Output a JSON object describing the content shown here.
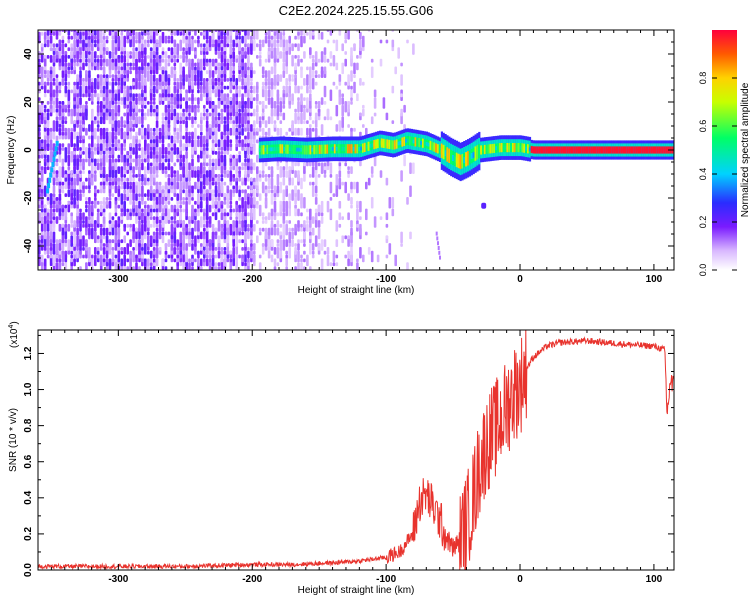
{
  "title": "C2E2.2024.225.15.55.G06",
  "chart_data": [
    {
      "type": "heatmap",
      "xlabel": "Height of straight line (km)",
      "ylabel": "Frequency (Hz)",
      "xlim": [
        -360,
        115
      ],
      "ylim": [
        -50,
        50
      ],
      "x_ticks": [
        -300,
        -200,
        -100,
        0,
        100
      ],
      "y_ticks": [
        -40,
        -20,
        0,
        20,
        40
      ],
      "colorbar": {
        "label": "Normalized spectral amplitude",
        "range": [
          0,
          1
        ],
        "ticks": [
          0.0,
          0.2,
          0.4,
          0.6,
          0.8
        ]
      },
      "signal_track": [
        {
          "x": -195,
          "y": 0.0
        },
        {
          "x": -180,
          "y": 0.5
        },
        {
          "x": -160,
          "y": 0.0
        },
        {
          "x": -140,
          "y": 0.5
        },
        {
          "x": -120,
          "y": 0.5
        },
        {
          "x": -105,
          "y": 3.0
        },
        {
          "x": -95,
          "y": 2.0
        },
        {
          "x": -85,
          "y": 4.0
        },
        {
          "x": -70,
          "y": 2.5
        },
        {
          "x": -60,
          "y": 0.0
        },
        {
          "x": -52,
          "y": -3.0
        },
        {
          "x": -45,
          "y": -5.0
        },
        {
          "x": -38,
          "y": -3.0
        },
        {
          "x": -30,
          "y": 0.0
        },
        {
          "x": -15,
          "y": 1.0
        },
        {
          "x": 0,
          "y": 1.0
        },
        {
          "x": 10,
          "y": 0.0
        },
        {
          "x": 60,
          "y": 0.0
        },
        {
          "x": 115,
          "y": 0.0
        }
      ]
    },
    {
      "type": "line",
      "xlabel": "Height of straight line (km)",
      "ylabel": "SNR (10 * v/v)",
      "y_multiplier": "(x10",
      "y_multiplier_exp": "4",
      "y_multiplier_close": ")",
      "xlim": [
        -360,
        115
      ],
      "ylim": [
        0,
        1.33
      ],
      "x_ticks": [
        -300,
        -200,
        -100,
        0,
        100
      ],
      "y_ticks": [
        0.0,
        0.2,
        0.4,
        0.6,
        0.8,
        1.0,
        1.2
      ],
      "series": [
        {
          "color": "#e8332d",
          "points": [
            [
              -360,
              0.02
            ],
            [
              -300,
              0.02
            ],
            [
              -250,
              0.02
            ],
            [
              -200,
              0.03
            ],
            [
              -170,
              0.03
            ],
            [
              -140,
              0.04
            ],
            [
              -120,
              0.05
            ],
            [
              -100,
              0.07
            ],
            [
              -90,
              0.1
            ],
            [
              -80,
              0.2
            ],
            [
              -75,
              0.38
            ],
            [
              -70,
              0.42
            ],
            [
              -65,
              0.35
            ],
            [
              -60,
              0.28
            ],
            [
              -55,
              0.18
            ],
            [
              -50,
              0.12
            ],
            [
              -45,
              0.16
            ],
            [
              -40,
              0.26
            ],
            [
              -35,
              0.4
            ],
            [
              -30,
              0.58
            ],
            [
              -25,
              0.7
            ],
            [
              -20,
              0.76
            ],
            [
              -15,
              0.82
            ],
            [
              -10,
              0.9
            ],
            [
              -5,
              0.98
            ],
            [
              0,
              1.02
            ],
            [
              5,
              1.12
            ],
            [
              10,
              1.18
            ],
            [
              20,
              1.24
            ],
            [
              30,
              1.26
            ],
            [
              50,
              1.27
            ],
            [
              80,
              1.25
            ],
            [
              100,
              1.24
            ],
            [
              108,
              1.22
            ],
            [
              110,
              0.85
            ],
            [
              112,
              1.05
            ],
            [
              115,
              1.0
            ]
          ]
        }
      ]
    }
  ]
}
